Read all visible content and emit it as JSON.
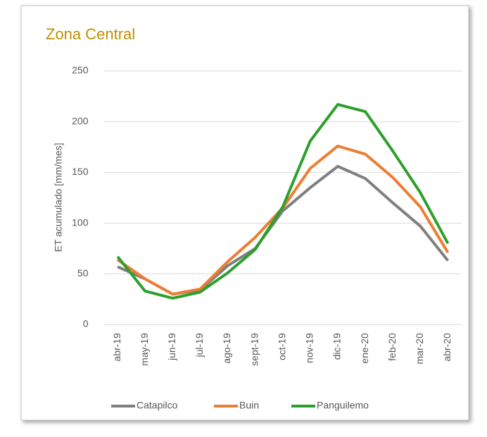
{
  "chart_data": {
    "type": "line",
    "title": "Zona Central",
    "y_label": "ET acumulado [mm/mes]",
    "categories": [
      "abr-19",
      "may-19",
      "jun-19",
      "jul-19",
      "ago-19",
      "sept-19",
      "oct-19",
      "nov-19",
      "dic-19",
      "ene-20",
      "feb-20",
      "mar-20",
      "abr-20"
    ],
    "series": [
      {
        "name": "Catapilco",
        "color": "#7f7f7f",
        "values": [
          57,
          45,
          30,
          34,
          58,
          75,
          112,
          135,
          156,
          144,
          120,
          97,
          63
        ]
      },
      {
        "name": "Buin",
        "color": "#ed7d31",
        "values": [
          64,
          45,
          30,
          35,
          62,
          86,
          115,
          154,
          176,
          168,
          145,
          116,
          71
        ]
      },
      {
        "name": "Panguilemo",
        "color": "#2ca02c",
        "values": [
          67,
          33,
          26,
          32,
          51,
          74,
          116,
          181,
          217,
          210,
          171,
          130,
          80
        ]
      }
    ],
    "ylim": [
      0,
      250
    ],
    "yticks": [
      0,
      50,
      100,
      150,
      200,
      250
    ],
    "grid": true,
    "legend": "bottom"
  }
}
